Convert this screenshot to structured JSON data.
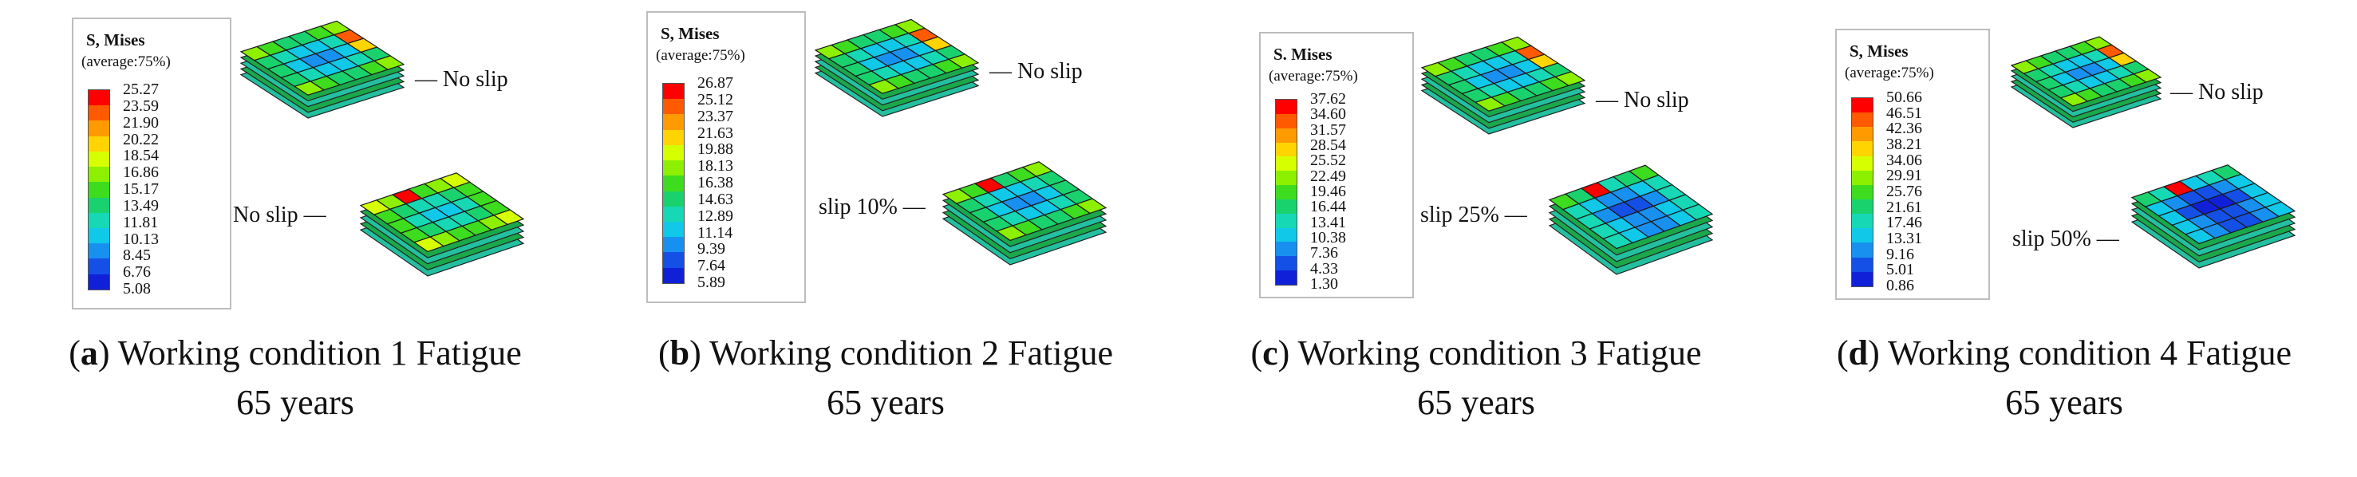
{
  "legend_colors": [
    "#ff0000",
    "#ff5a00",
    "#ff9a00",
    "#ffd400",
    "#d6ff00",
    "#8cf000",
    "#3ddc1f",
    "#19d26e",
    "#16d8b4",
    "#10c8e8",
    "#1890f0",
    "#1450e6",
    "#1020d8"
  ],
  "panels": [
    {
      "id": "a",
      "legend": {
        "title": "S, Mises",
        "subtitle": "(average:75%)",
        "ticks": [
          "25.27",
          "23.59",
          "21.90",
          "20.22",
          "18.54",
          "16.86",
          "15.17",
          "13.49",
          "11.81",
          "10.13",
          "8.45",
          "6.76",
          "5.08"
        ]
      },
      "top_label": "— No slip",
      "bottom_label": "No slip —",
      "caption": {
        "letter": "a",
        "text": "Working condition 1 Fatigue",
        "line2": "65 years"
      }
    },
    {
      "id": "b",
      "legend": {
        "title": "S, Mises",
        "subtitle": "(average:75%)",
        "ticks": [
          "26.87",
          "25.12",
          "23.37",
          "21.63",
          "19.88",
          "18.13",
          "16.38",
          "14.63",
          "12.89",
          "11.14",
          "9.39",
          "7.64",
          "5.89"
        ]
      },
      "top_label": "— No slip",
      "bottom_label": "slip 10% —",
      "caption": {
        "letter": "b",
        "text": "Working condition 2 Fatigue",
        "line2": "65 years"
      }
    },
    {
      "id": "c",
      "legend": {
        "title": "S. Mises",
        "subtitle": "(average:75%)",
        "ticks": [
          "37.62",
          "34.60",
          "31.57",
          "28.54",
          "25.52",
          "22.49",
          "19.46",
          "16.44",
          "13.41",
          "10.38",
          "7.36",
          "4.33",
          "1.30"
        ]
      },
      "top_label": "— No slip",
      "bottom_label": "slip 25% —",
      "caption": {
        "letter": "c",
        "text": "Working condition 3 Fatigue",
        "line2": "65 years"
      }
    },
    {
      "id": "d",
      "legend": {
        "title": "S, Mises",
        "subtitle": "(average:75%)",
        "ticks": [
          "50.66",
          "46.51",
          "42.36",
          "38.21",
          "34.06",
          "29.91",
          "25.76",
          "21.61",
          "17.46",
          "13.31",
          "9.16",
          "5.01",
          "0.86"
        ]
      },
      "top_label": "— No slip",
      "bottom_label": "slip 50% —",
      "caption": {
        "letter": "d",
        "text": "Working condition 4 Fatigue",
        "line2": "65 years"
      }
    }
  ]
}
